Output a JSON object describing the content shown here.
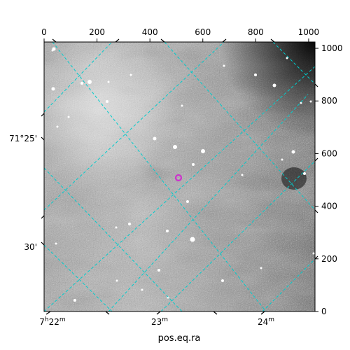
{
  "axes": {
    "xlabel": "pos.eq.ra",
    "ylabel": "",
    "pixel_x_ticks": [
      "0",
      "200",
      "400",
      "600",
      "800",
      "1000"
    ],
    "pixel_y_ticks": [
      "0",
      "200",
      "400",
      "600",
      "800",
      "1000"
    ],
    "ra_ticks": [
      {
        "hours": "7",
        "minutes": "22"
      },
      {
        "hours": "",
        "minutes": "23"
      },
      {
        "hours": "",
        "minutes": "24"
      }
    ],
    "dec_ticks": [
      "71°25'",
      "30'"
    ]
  },
  "colors": {
    "grid": "#00cccc",
    "marker": "#cc33cc",
    "frame": "#000000"
  }
}
